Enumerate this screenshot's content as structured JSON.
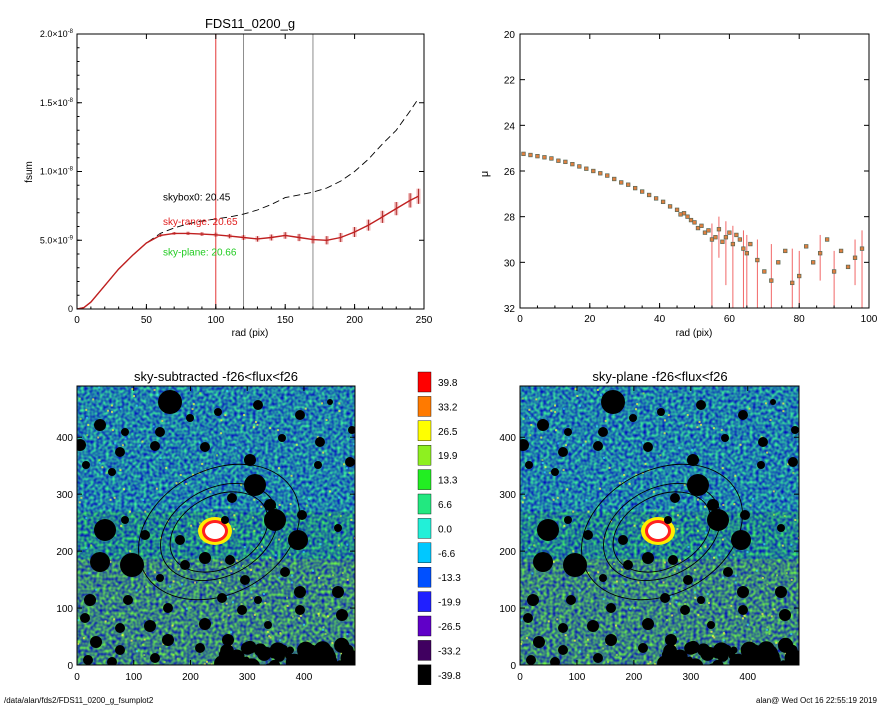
{
  "footer": {
    "path": "/data/alan/fds2/FDS11_0200_g_fsumplot2",
    "stamp": "alan@  Wed Oct 16 22:55:19 2019"
  },
  "chart_data": [
    {
      "id": "fsum",
      "type": "line",
      "title": "FDS11_0200_g",
      "xlabel": "rad (pix)",
      "ylabel": "fsum",
      "xlim": [
        0,
        250
      ],
      "ylim": [
        0,
        2e-08
      ],
      "xticks": [
        0,
        50,
        100,
        150,
        200,
        250
      ],
      "yticks": [
        {
          "v": 0,
          "m": "0",
          "e": ""
        },
        {
          "v": 5e-09,
          "m": "5.0×10",
          "e": "-9"
        },
        {
          "v": 1e-08,
          "m": "1.0×10",
          "e": "-8"
        },
        {
          "v": 1.5e-08,
          "m": "1.5×10",
          "e": "-8"
        },
        {
          "v": 2e-08,
          "m": "2.0×10",
          "e": "-8"
        }
      ],
      "vlines": [
        {
          "x": 100,
          "color": "#e02020"
        },
        {
          "x": 120,
          "color": "#808080"
        },
        {
          "x": 170,
          "color": "#808080"
        }
      ],
      "annotations": [
        {
          "text": "skybox0: 20.45",
          "x": 62,
          "y": 7.9e-09,
          "color": "#000000"
        },
        {
          "text": "sky-range: 20.65",
          "x": 62,
          "y": 6.1e-09,
          "color": "#e02020"
        },
        {
          "text": "sky-plane: 20.66",
          "x": 62,
          "y": 3.9e-09,
          "color": "#22cc22"
        }
      ],
      "series": [
        {
          "style": "dashed",
          "color": "#000000",
          "x": [
            0,
            5,
            10,
            20,
            30,
            40,
            50,
            60,
            70,
            80,
            90,
            100,
            110,
            120,
            130,
            140,
            150,
            160,
            170,
            180,
            190,
            200,
            210,
            220,
            230,
            240,
            246
          ],
          "y": [
            0,
            1e-10,
            5e-10,
            1.7e-09,
            2.9e-09,
            3.9e-09,
            4.8e-09,
            5.5e-09,
            5.9e-09,
            6.2e-09,
            6.4e-09,
            6.55e-09,
            6.7e-09,
            6.9e-09,
            7.2e-09,
            7.6e-09,
            8.1e-09,
            8.3e-09,
            8.5e-09,
            8.8e-09,
            9.3e-09,
            1e-08,
            1.09e-08,
            1.2e-08,
            1.3e-08,
            1.44e-08,
            1.53e-08
          ]
        },
        {
          "style": "solid",
          "color": "#c02020",
          "errorbars": true,
          "x": [
            0,
            5,
            10,
            20,
            30,
            40,
            50,
            60,
            70,
            80,
            90,
            100,
            110,
            120,
            130,
            140,
            150,
            160,
            170,
            180,
            190,
            200,
            210,
            220,
            230,
            240,
            246
          ],
          "y": [
            0,
            1e-10,
            5e-10,
            1.7e-09,
            2.9e-09,
            3.9e-09,
            4.8e-09,
            5.35e-09,
            5.5e-09,
            5.5e-09,
            5.45e-09,
            5.4e-09,
            5.3e-09,
            5.2e-09,
            5.1e-09,
            5.2e-09,
            5.35e-09,
            5.2e-09,
            5.05e-09,
            5e-09,
            5.2e-09,
            5.6e-09,
            6.1e-09,
            6.7e-09,
            7.3e-09,
            7.9e-09,
            8.2e-09
          ],
          "err": [
            0,
            0,
            0,
            0,
            0,
            0,
            0,
            1e-10,
            1e-10,
            1.2e-10,
            1.3e-10,
            1.5e-10,
            1.6e-10,
            1.8e-10,
            2e-10,
            2.2e-10,
            2.4e-10,
            2.6e-10,
            2.8e-10,
            3e-10,
            3.3e-10,
            3.6e-10,
            4e-10,
            4.4e-10,
            4.8e-10,
            5.2e-10,
            5.5e-10
          ]
        }
      ]
    },
    {
      "id": "mu",
      "type": "scatter",
      "title": "",
      "xlabel": "rad (pix)",
      "ylabel": "μ",
      "xlim": [
        0,
        100
      ],
      "ylim": [
        32,
        20
      ],
      "xticks": [
        0,
        20,
        40,
        60,
        80,
        100
      ],
      "yticks": [
        20,
        22,
        24,
        26,
        28,
        30,
        32
      ],
      "points": [
        [
          1,
          25.25
        ],
        [
          3,
          25.3
        ],
        [
          5,
          25.35
        ],
        [
          7,
          25.4
        ],
        [
          9,
          25.45
        ],
        [
          11,
          25.55
        ],
        [
          13,
          25.6
        ],
        [
          15,
          25.7
        ],
        [
          17,
          25.8
        ],
        [
          19,
          25.9
        ],
        [
          21,
          26.0
        ],
        [
          23,
          26.1
        ],
        [
          25,
          26.2
        ],
        [
          27,
          26.35
        ],
        [
          29,
          26.5
        ],
        [
          31,
          26.6
        ],
        [
          33,
          26.75
        ],
        [
          35,
          26.9
        ],
        [
          37,
          27.05
        ],
        [
          39,
          27.2
        ],
        [
          41,
          27.35
        ],
        [
          43,
          27.55
        ],
        [
          45,
          27.7
        ],
        [
          46,
          27.9
        ],
        [
          47,
          27.85
        ],
        [
          48,
          28.0
        ],
        [
          49,
          28.15
        ],
        [
          50,
          28.25
        ],
        [
          51,
          28.5
        ],
        [
          52,
          28.4
        ],
        [
          53,
          28.7
        ],
        [
          54,
          28.6
        ],
        [
          55,
          29.0
        ],
        [
          56,
          28.9
        ],
        [
          57,
          28.55
        ],
        [
          58,
          29.1
        ],
        [
          59,
          28.9
        ],
        [
          60,
          28.7
        ],
        [
          61,
          29.2
        ],
        [
          62,
          28.8
        ],
        [
          63,
          29.0
        ],
        [
          64,
          29.4
        ],
        [
          65,
          29.6
        ],
        [
          66,
          29.2
        ],
        [
          68,
          29.9
        ],
        [
          70,
          30.4
        ],
        [
          72,
          30.8
        ],
        [
          74,
          30.0
        ],
        [
          76,
          29.5
        ],
        [
          78,
          30.9
        ],
        [
          80,
          30.6
        ],
        [
          82,
          29.3
        ],
        [
          84,
          30.0
        ],
        [
          86,
          29.6
        ],
        [
          88,
          29.0
        ],
        [
          90,
          30.4
        ],
        [
          92,
          29.5
        ],
        [
          94,
          30.2
        ],
        [
          96,
          29.8
        ],
        [
          98,
          29.4
        ]
      ],
      "errbars": [
        [
          55,
          28.3,
          32
        ],
        [
          57,
          28.0,
          29.8
        ],
        [
          59,
          28.2,
          31
        ],
        [
          61,
          28.4,
          32
        ],
        [
          64,
          28.6,
          32
        ],
        [
          65,
          28.8,
          32
        ],
        [
          68,
          29.0,
          32
        ],
        [
          72,
          29.2,
          32
        ],
        [
          78,
          29.4,
          32
        ],
        [
          80,
          29.5,
          32
        ],
        [
          86,
          28.8,
          30.8
        ],
        [
          90,
          29.5,
          32
        ],
        [
          96,
          29.0,
          31
        ],
        [
          98,
          28.6,
          32
        ]
      ]
    },
    {
      "id": "img1",
      "type": "heatmap",
      "title": "sky-subtracted -f26<flux<f26",
      "xlim": [
        0,
        490
      ],
      "ylim": [
        0,
        490
      ],
      "xticks": [
        0,
        100,
        200,
        300,
        400
      ],
      "yticks": [
        0,
        100,
        200,
        300,
        400
      ]
    },
    {
      "id": "img2",
      "type": "heatmap",
      "title": "sky-plane -f26<flux<f26",
      "xlim": [
        0,
        490
      ],
      "ylim": [
        0,
        490
      ],
      "xticks": [
        0,
        100,
        200,
        300,
        400
      ],
      "yticks": [
        0,
        100,
        200,
        300,
        400
      ]
    },
    {
      "id": "colorbar",
      "type": "table",
      "labels": [
        "39.8",
        "33.2",
        "26.5",
        "19.9",
        "13.3",
        "6.6",
        "0.0",
        "-6.6",
        "-13.3",
        "-19.9",
        "-26.5",
        "-33.2",
        "-39.8"
      ],
      "colors": [
        "#ff0000",
        "#ff7a00",
        "#ffff00",
        "#8ef020",
        "#22ee22",
        "#22e880",
        "#22f0d8",
        "#00c8ff",
        "#0050ff",
        "#2020ff",
        "#6000c8",
        "#400060",
        "#000000"
      ]
    }
  ]
}
